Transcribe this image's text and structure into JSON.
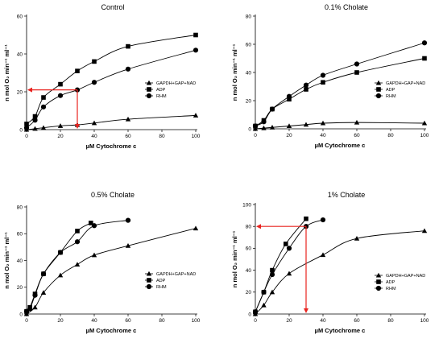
{
  "chart_data": [
    {
      "type": "line",
      "title": "Control",
      "xlabel": "µM Cytochrome c",
      "ylabel": "n mol O₂ min⁻¹ ml⁻¹",
      "xlim": [
        0,
        100
      ],
      "ylim": [
        0,
        60
      ],
      "xticks": [
        "0",
        "20",
        "40",
        "60",
        "80",
        "100"
      ],
      "yticks": [
        "0",
        "20",
        "40",
        "60"
      ],
      "legend_position": "right",
      "grid": false,
      "series": [
        {
          "name": "GAPDH+GAP+NAD",
          "marker": "triangle",
          "x": [
            0,
            5,
            10,
            20,
            30,
            40,
            60,
            100
          ],
          "y": [
            0,
            0.5,
            1,
            2,
            2.5,
            3.5,
            5.5,
            7.5
          ]
        },
        {
          "name": "ADP",
          "marker": "square",
          "x": [
            0,
            5,
            10,
            20,
            30,
            40,
            60,
            100
          ],
          "y": [
            3,
            7,
            17,
            24,
            31,
            36,
            44,
            50
          ]
        },
        {
          "name": "RHM",
          "marker": "circle",
          "x": [
            0,
            5,
            10,
            20,
            30,
            40,
            60,
            100
          ],
          "y": [
            1,
            5,
            12,
            18,
            21,
            25,
            32,
            42
          ]
        }
      ],
      "annotation": {
        "x": 30,
        "y": 21,
        "color": "#e8231f"
      }
    },
    {
      "type": "line",
      "title": "0.1% Cholate",
      "xlabel": "µM Cytochrome c",
      "ylabel": "n mol O₂ min⁻¹ ml⁻¹",
      "xlim": [
        0,
        100
      ],
      "ylim": [
        0,
        80
      ],
      "xticks": [
        "0",
        "20",
        "40",
        "60",
        "80",
        "100"
      ],
      "yticks": [
        "0",
        "20",
        "40",
        "60",
        "80"
      ],
      "legend_position": "right",
      "grid": false,
      "series": [
        {
          "name": "GAPDH+GAP+NAD",
          "marker": "triangle",
          "x": [
            0,
            5,
            10,
            20,
            30,
            40,
            60,
            100
          ],
          "y": [
            0,
            0.5,
            1,
            2,
            3,
            4,
            4.5,
            4
          ]
        },
        {
          "name": "ADP",
          "marker": "square",
          "x": [
            0,
            5,
            10,
            20,
            30,
            40,
            60,
            100
          ],
          "y": [
            2,
            6,
            14,
            21,
            28,
            33,
            40,
            50
          ]
        },
        {
          "name": "RHM",
          "marker": "circle",
          "x": [
            0,
            5,
            10,
            20,
            30,
            40,
            60,
            100
          ],
          "y": [
            2,
            5,
            14,
            23,
            31,
            38,
            46,
            61
          ]
        }
      ]
    },
    {
      "type": "line",
      "title": "0.5% Cholate",
      "xlabel": "µM Cytochrome c",
      "ylabel": "n mol O₂ min⁻¹ ml⁻¹",
      "xlim": [
        0,
        100
      ],
      "ylim": [
        0,
        80
      ],
      "xticks": [
        "0",
        "20",
        "40",
        "60",
        "80",
        "100"
      ],
      "yticks": [
        "0",
        "20",
        "40",
        "60",
        "80"
      ],
      "legend_position": "right",
      "grid": false,
      "series": [
        {
          "name": "GAPDH+GAP+NAD",
          "marker": "triangle",
          "x": [
            0,
            5,
            10,
            20,
            30,
            40,
            60,
            100
          ],
          "y": [
            0,
            5,
            16,
            29,
            37,
            44,
            51,
            64
          ]
        },
        {
          "name": "ADP",
          "marker": "square",
          "x": [
            0,
            2,
            5,
            10,
            20,
            30,
            38
          ],
          "y": [
            2,
            5,
            15,
            30,
            46,
            62,
            68
          ]
        },
        {
          "name": "RHM",
          "marker": "circle",
          "x": [
            0,
            2,
            5,
            10,
            20,
            30,
            40,
            60
          ],
          "y": [
            2,
            4,
            14,
            30,
            46,
            54,
            66,
            70
          ]
        }
      ]
    },
    {
      "type": "line",
      "title": "1% Cholate",
      "xlabel": "µM Cytochrome c",
      "ylabel": "n mol O₂ min⁻¹ ml⁻¹",
      "xlim": [
        0,
        100
      ],
      "ylim": [
        0,
        100
      ],
      "xticks": [
        "0",
        "20",
        "40",
        "60",
        "80",
        "100"
      ],
      "yticks": [
        "0",
        "20",
        "40",
        "60",
        "80",
        "100"
      ],
      "legend_position": "right",
      "grid": false,
      "series": [
        {
          "name": "GAPDH+GAP+NAD",
          "marker": "triangle",
          "x": [
            0,
            5,
            10,
            20,
            40,
            60,
            100
          ],
          "y": [
            0,
            8,
            20,
            37,
            54,
            69,
            76
          ]
        },
        {
          "name": "ADP",
          "marker": "square",
          "x": [
            0,
            5,
            10,
            18,
            30
          ],
          "y": [
            2,
            20,
            40,
            64,
            87
          ]
        },
        {
          "name": "RHM",
          "marker": "circle",
          "x": [
            0,
            5,
            10,
            20,
            30,
            40
          ],
          "y": [
            2,
            20,
            36,
            60,
            80,
            86
          ]
        }
      ],
      "annotation": {
        "x": 30,
        "y": 80,
        "color": "#e8231f"
      }
    }
  ]
}
